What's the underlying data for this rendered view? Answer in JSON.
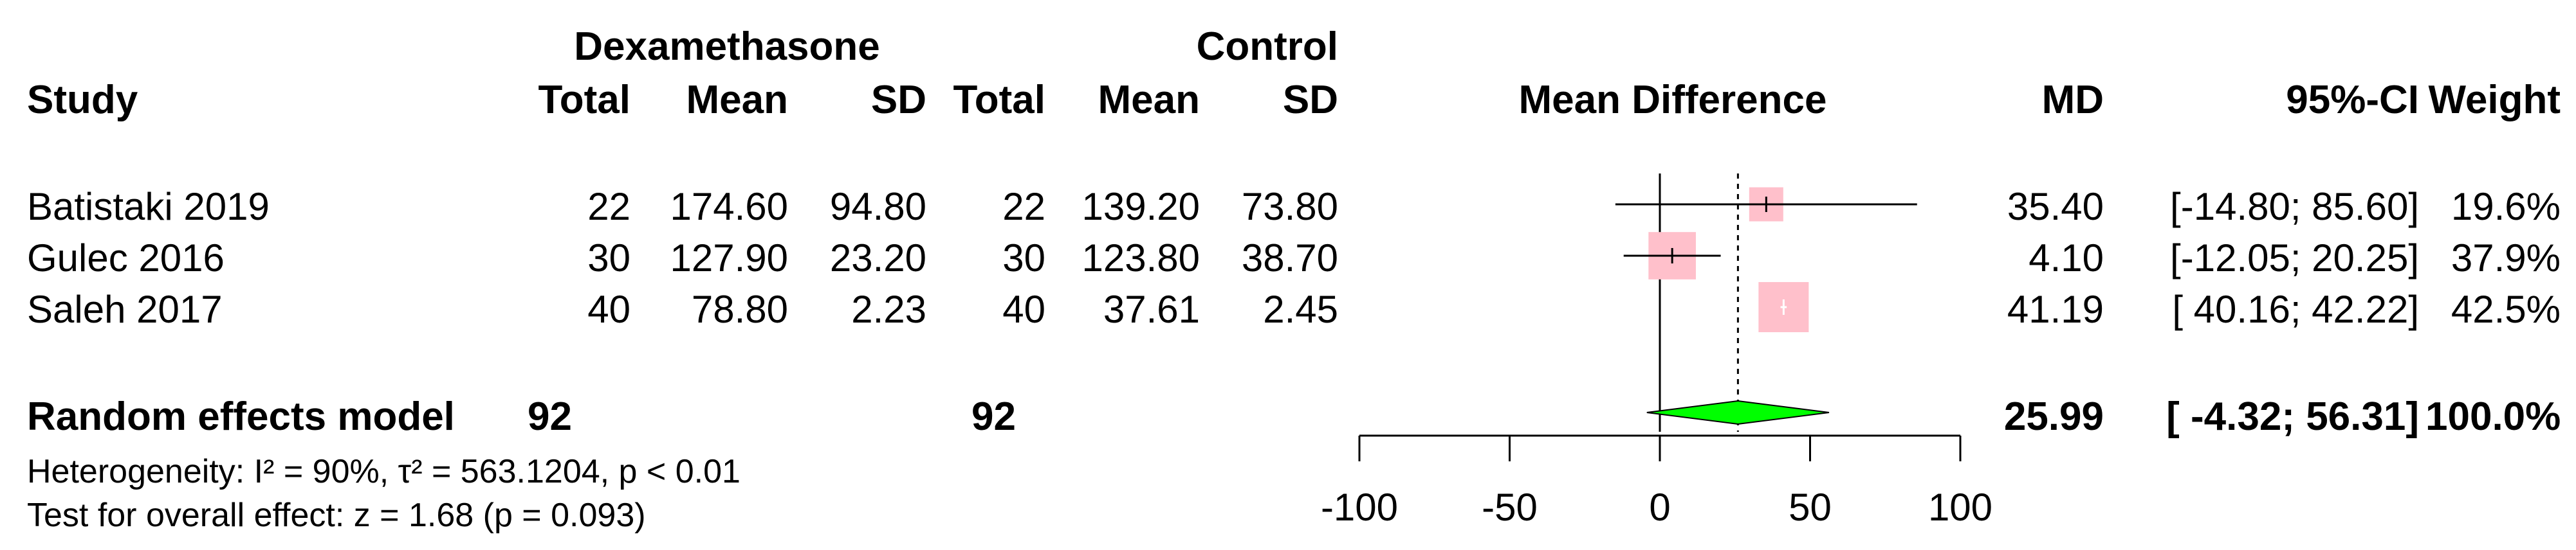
{
  "headers": {
    "group1": "Dexamethasone",
    "group2": "Control",
    "study": "Study",
    "total": "Total",
    "mean": "Mean",
    "sd": "SD",
    "mean_difference": "Mean Difference",
    "md": "MD",
    "ci": "95%-CI",
    "weight": "Weight"
  },
  "studies": [
    {
      "name": "Batistaki  2019",
      "t1": "22",
      "m1": "174.60",
      "s1": "94.80",
      "t2": "22",
      "m2": "139.20",
      "s2": "73.80",
      "md": "35.40",
      "ci": "[-14.80; 85.60]",
      "weight": "19.6%"
    },
    {
      "name": "Gulec  2016",
      "t1": "30",
      "m1": "127.90",
      "s1": "23.20",
      "t2": "30",
      "m2": "123.80",
      "s2": "38.70",
      "md": "4.10",
      "ci": "[-12.05; 20.25]",
      "weight": "37.9%"
    },
    {
      "name": "Saleh  2017",
      "t1": "40",
      "m1": "78.80",
      "s1": "2.23",
      "t2": "40",
      "m2": "37.61",
      "s2": "2.45",
      "md": "41.19",
      "ci": "[ 40.16; 42.22]",
      "weight": "42.5%"
    }
  ],
  "overall": {
    "label": "Random effects model",
    "t1": "92",
    "t2": "92",
    "md": "25.99",
    "ci": "[ -4.32; 56.31]",
    "weight": "100.0%"
  },
  "footer": {
    "heterogeneity": "Heterogeneity: I² = 90%, τ² = 563.1204, p < 0.01",
    "overall_test": "Test for overall effect: z = 1.68 (p = 0.093)"
  },
  "chart_data": {
    "type": "forest",
    "xlim": [
      -100,
      100
    ],
    "xticks": [
      -100,
      -50,
      0,
      50,
      100
    ],
    "xtick_labels": [
      "-100",
      "-50",
      "0",
      "50",
      "100"
    ],
    "null_line": 0,
    "pooled_line": 25.99,
    "studies": [
      {
        "name": "Batistaki  2019",
        "md": 35.4,
        "lower": -14.8,
        "upper": 85.6,
        "weight": 19.6
      },
      {
        "name": "Gulec  2016",
        "md": 4.1,
        "lower": -12.05,
        "upper": 20.25,
        "weight": 37.9
      },
      {
        "name": "Saleh  2017",
        "md": 41.19,
        "lower": 40.16,
        "upper": 42.22,
        "weight": 42.5
      }
    ],
    "pooled": {
      "md": 25.99,
      "lower": -4.32,
      "upper": 56.31
    },
    "colors": {
      "box": "#FFC0CB",
      "diamond": "#00FF00",
      "lines": "#000000"
    }
  }
}
